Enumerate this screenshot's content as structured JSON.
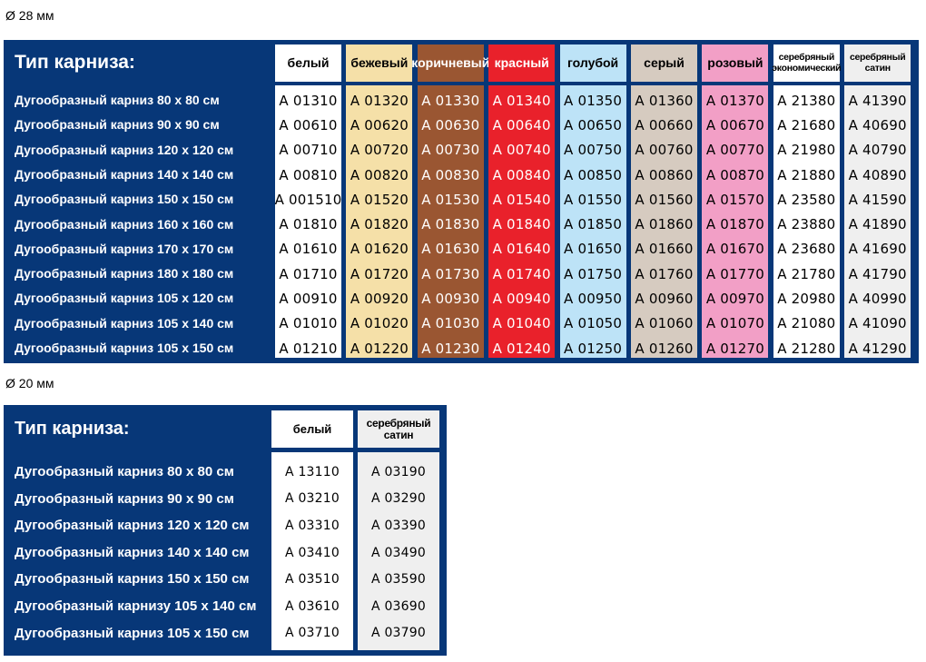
{
  "section28": {
    "caption": "Ø 28 мм",
    "title": "Тип карниза:",
    "colors": [
      {
        "label": "белый",
        "bg": "#ffffff",
        "fg": "#000000"
      },
      {
        "label": "бежевый",
        "bg": "#f5e0a8",
        "fg": "#000000"
      },
      {
        "label": "коричневый",
        "bg": "#9a5632",
        "fg": "#ffffff"
      },
      {
        "label": "красный",
        "bg": "#e9212b",
        "fg": "#ffffff"
      },
      {
        "label": "голубой",
        "bg": "#bde3f7",
        "fg": "#000000"
      },
      {
        "label": "серый",
        "bg": "#d6cbc0",
        "fg": "#000000"
      },
      {
        "label": "розовый",
        "bg": "#f29fc6",
        "fg": "#000000"
      },
      {
        "label": "серебряный экономический",
        "bg": "#ffffff",
        "fg": "#000000"
      },
      {
        "label": "серебряный сатин",
        "bg": "#efefef",
        "fg": "#000000"
      }
    ],
    "rows": [
      {
        "label": "Дугообразный карниз 80 х 80 см",
        "codes": [
          "A 01310",
          "A 01320",
          "A 01330",
          "A 01340",
          "A 01350",
          "A 01360",
          "A 01370",
          "A 21380",
          "A 41390"
        ]
      },
      {
        "label": "Дугообразный карниз 90 х 90 см",
        "codes": [
          "A 00610",
          "A 00620",
          "A 00630",
          "A 00640",
          "A 00650",
          "A 00660",
          "A 00670",
          "A 21680",
          "A 40690"
        ]
      },
      {
        "label": "Дугообразный карниз 120 х 120 см",
        "codes": [
          "A 00710",
          "A 00720",
          "A 00730",
          "A 00740",
          "A 00750",
          "A 00760",
          "A 00770",
          "A 21980",
          "A 40790"
        ]
      },
      {
        "label": "Дугообразный карниз 140 х 140 см",
        "codes": [
          "A 00810",
          "A 00820",
          "A 00830",
          "A 00840",
          "A 00850",
          "A 00860",
          "A 00870",
          "A 21880",
          "A 40890"
        ]
      },
      {
        "label": "Дугообразный карниз 150 х 150 см",
        "codes": [
          "A 001510",
          "A 01520",
          "A 01530",
          "A 01540",
          "A 01550",
          "A 01560",
          "A 01570",
          "A 23580",
          "A 41590"
        ]
      },
      {
        "label": "Дугообразный карниз 160 х 160 см",
        "codes": [
          "A 01810",
          "A 01820",
          "A 01830",
          "A 01840",
          "A 01850",
          "A 01860",
          "A 01870",
          "A 23880",
          "A 41890"
        ]
      },
      {
        "label": "Дугообразный карниз 170 х 170 см",
        "codes": [
          "A 01610",
          "A 01620",
          "A 01630",
          "A 01640",
          "A 01650",
          "A 01660",
          "A 01670",
          "A 23680",
          "A 41690"
        ]
      },
      {
        "label": "Дугообразный карниз 180 х 180 см",
        "codes": [
          "A 01710",
          "A 01720",
          "A 01730",
          "A 01740",
          "A 01750",
          "A 01760",
          "A 01770",
          "A 21780",
          "A 41790"
        ]
      },
      {
        "label": "Дугообразный карниз 105 х 120 см",
        "codes": [
          "A 00910",
          "A 00920",
          "A 00930",
          "A 00940",
          "A 00950",
          "A 00960",
          "A 00970",
          "A 20980",
          "A 40990"
        ]
      },
      {
        "label": "Дугообразный карниз 105 х 140 см",
        "codes": [
          "A 01010",
          "A 01020",
          "A 01030",
          "A 01040",
          "A 01050",
          "A 01060",
          "A 01070",
          "A 21080",
          "A 41090"
        ]
      },
      {
        "label": "Дугообразный карниз 105 х 150 см",
        "codes": [
          "A 01210",
          "A 01220",
          "A 01230",
          "A 01240",
          "A 01250",
          "A 01260",
          "A 01270",
          "A 21280",
          "A 41290"
        ]
      }
    ]
  },
  "section20": {
    "caption": "Ø 20 мм",
    "title": "Тип карниза:",
    "colors": [
      {
        "label": "белый",
        "bg": "#ffffff",
        "fg": "#000000"
      },
      {
        "label": "серебряный сатин",
        "bg": "#efefef",
        "fg": "#000000"
      }
    ],
    "rows": [
      {
        "label": "Дугообразный карниз 80 х 80 см",
        "codes": [
          "A 13110",
          "A 03190"
        ]
      },
      {
        "label": "Дугообразный карниз 90 х 90 см",
        "codes": [
          "A 03210",
          "A 03290"
        ]
      },
      {
        "label": "Дугообразный карниз 120 х 120 см",
        "codes": [
          "A 03310",
          "A 03390"
        ]
      },
      {
        "label": "Дугообразный карниз 140 х 140 см",
        "codes": [
          "A 03410",
          "A 03490"
        ]
      },
      {
        "label": "Дугообразный карниз 150 х 150 см",
        "codes": [
          "A 03510",
          "A 03590"
        ]
      },
      {
        "label": "Дугообразный карнизу 105 х 140 см",
        "codes": [
          "A 03610",
          "A 03690"
        ]
      },
      {
        "label": "Дугообразный карниз 105 х 150 см",
        "codes": [
          "A 03710",
          "A 03790"
        ]
      }
    ]
  }
}
